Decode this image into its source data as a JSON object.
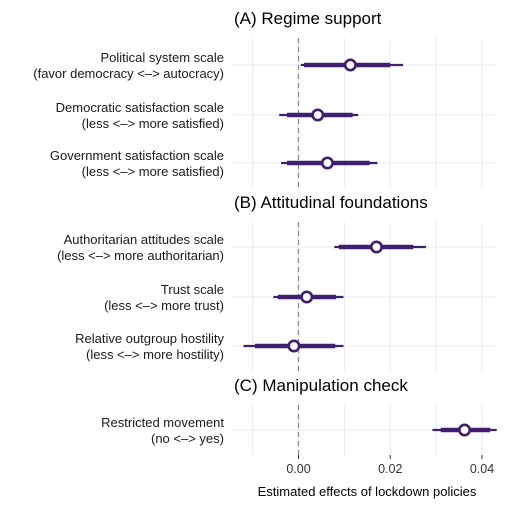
{
  "chart_data": {
    "type": "coefficient_plot",
    "xlabel": "Estimated effects of lockdown policies",
    "xlim": [
      -0.0125,
      0.044
    ],
    "xticks": [
      {
        "value": 0.0,
        "label": "0.00"
      },
      {
        "value": 0.02,
        "label": "0.02"
      },
      {
        "value": 0.04,
        "label": "0.04"
      }
    ],
    "minor_ticks": [
      -0.01,
      0.01,
      0.03
    ],
    "reference_line": 0,
    "color": "#3f1f6e",
    "panels": [
      {
        "title": "(A) Regime support",
        "rows": [
          {
            "label_line1": "Political system scale",
            "label_line2": "(favor democracy <–> autocracy)",
            "estimate": 0.0113,
            "ci_inner": [
              0.0012,
              0.02
            ],
            "ci_outer": [
              0.0005,
              0.0228
            ]
          },
          {
            "label_line1": "Democratic satisfaction scale",
            "label_line2": "(less <–> more satisfied)",
            "estimate": 0.0042,
            "ci_inner": [
              -0.0025,
              0.0118
            ],
            "ci_outer": [
              -0.0042,
              0.013
            ]
          },
          {
            "label_line1": "Government satisfaction scale",
            "label_line2": "(less <–> more satisfied)",
            "estimate": 0.0063,
            "ci_inner": [
              -0.0025,
              0.0155
            ],
            "ci_outer": [
              -0.0038,
              0.0172
            ]
          }
        ]
      },
      {
        "title": "(B) Attitudinal foundations",
        "rows": [
          {
            "label_line1": "Authoritarian attitudes scale",
            "label_line2": "(less <–> more authoritarian)",
            "estimate": 0.017,
            "ci_inner": [
              0.0088,
              0.025
            ],
            "ci_outer": [
              0.0078,
              0.0278
            ]
          },
          {
            "label_line1": "Trust scale",
            "label_line2": "(less <–> more trust)",
            "estimate": 0.0018,
            "ci_inner": [
              -0.0045,
              0.0082
            ],
            "ci_outer": [
              -0.0055,
              0.0098
            ]
          },
          {
            "label_line1": "Relative outgroup hostility",
            "label_line2": "(less <–> more hostility)",
            "estimate": -0.001,
            "ci_inner": [
              -0.0095,
              0.008
            ],
            "ci_outer": [
              -0.012,
              0.0098
            ]
          }
        ]
      },
      {
        "title": "(C) Manipulation check",
        "rows": [
          {
            "label_line1": "Restricted movement",
            "label_line2": "(no <–> yes)",
            "estimate": 0.0362,
            "ci_inner": [
              0.031,
              0.0418
            ],
            "ci_outer": [
              0.0292,
              0.0432
            ]
          }
        ]
      }
    ]
  }
}
